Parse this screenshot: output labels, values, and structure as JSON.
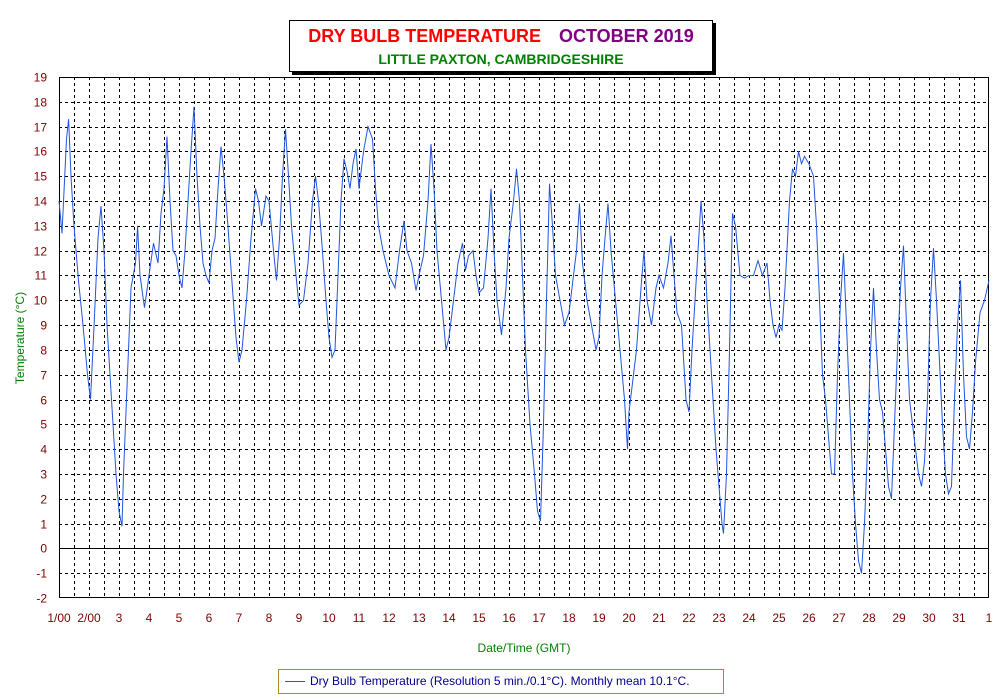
{
  "title": {
    "main": "DRY BULB TEMPERATURE",
    "month": "OCTOBER 2019",
    "subtitle": "LITTLE PAXTON, CAMBRIDGESHIRE"
  },
  "legend": {
    "label": "Dry Bulb Temperature (Resolution 5 min./0.1°C). Monthly mean 10.1°C."
  },
  "colors": {
    "title": "#ff0000",
    "month": "#800080",
    "subtitle": "#008000",
    "axis_ticks": "#800000",
    "axis_titles": "#008000",
    "series": "#2255dd",
    "legend_text": "#00008b"
  },
  "chart_data": {
    "type": "line",
    "xlabel": "Date/Time (GMT)",
    "ylabel": "Temperature (°C)",
    "ylim": [
      -2,
      19
    ],
    "xlim": [
      1,
      32
    ],
    "y_ticks": [
      -2,
      -1,
      0,
      1,
      2,
      3,
      4,
      5,
      6,
      7,
      8,
      9,
      10,
      11,
      12,
      13,
      14,
      15,
      16,
      17,
      18,
      19
    ],
    "x_ticks": [
      {
        "x": 1,
        "label": "1/00"
      },
      {
        "x": 2,
        "label": "2/00"
      },
      {
        "x": 3,
        "label": "3"
      },
      {
        "x": 4,
        "label": "4"
      },
      {
        "x": 5,
        "label": "5"
      },
      {
        "x": 6,
        "label": "6"
      },
      {
        "x": 7,
        "label": "7"
      },
      {
        "x": 8,
        "label": "8"
      },
      {
        "x": 9,
        "label": "9"
      },
      {
        "x": 10,
        "label": "10"
      },
      {
        "x": 11,
        "label": "11"
      },
      {
        "x": 12,
        "label": "12"
      },
      {
        "x": 13,
        "label": "13"
      },
      {
        "x": 14,
        "label": "14"
      },
      {
        "x": 15,
        "label": "15"
      },
      {
        "x": 16,
        "label": "16"
      },
      {
        "x": 17,
        "label": "17"
      },
      {
        "x": 18,
        "label": "18"
      },
      {
        "x": 19,
        "label": "19"
      },
      {
        "x": 20,
        "label": "20"
      },
      {
        "x": 21,
        "label": "21"
      },
      {
        "x": 22,
        "label": "22"
      },
      {
        "x": 23,
        "label": "23"
      },
      {
        "x": 24,
        "label": "24"
      },
      {
        "x": 25,
        "label": "25"
      },
      {
        "x": 26,
        "label": "26"
      },
      {
        "x": 27,
        "label": "27"
      },
      {
        "x": 28,
        "label": "28"
      },
      {
        "x": 29,
        "label": "29"
      },
      {
        "x": 30,
        "label": "30"
      },
      {
        "x": 31,
        "label": "31"
      },
      {
        "x": 32,
        "label": "1"
      }
    ],
    "grid": true,
    "legend_position": "bottom-center",
    "series": [
      {
        "name": "Dry Bulb Temperature (Resolution 5 min./0.1°C). Monthly mean 10.1°C.",
        "points": [
          [
            1.0,
            14.0
          ],
          [
            1.1,
            12.7
          ],
          [
            1.25,
            16.5
          ],
          [
            1.32,
            17.3
          ],
          [
            1.4,
            15.0
          ],
          [
            1.5,
            13.0
          ],
          [
            1.65,
            10.8
          ],
          [
            1.8,
            9.0
          ],
          [
            1.95,
            7.0
          ],
          [
            2.05,
            6.0
          ],
          [
            2.15,
            8.5
          ],
          [
            2.3,
            12.5
          ],
          [
            2.4,
            13.8
          ],
          [
            2.5,
            12.0
          ],
          [
            2.6,
            9.0
          ],
          [
            2.75,
            6.0
          ],
          [
            2.9,
            3.0
          ],
          [
            3.0,
            1.5
          ],
          [
            3.1,
            0.9
          ],
          [
            3.15,
            3.0
          ],
          [
            3.25,
            6.0
          ],
          [
            3.4,
            10.5
          ],
          [
            3.55,
            11.5
          ],
          [
            3.62,
            13.0
          ],
          [
            3.7,
            11.0
          ],
          [
            3.85,
            9.7
          ],
          [
            4.0,
            11.0
          ],
          [
            4.15,
            12.3
          ],
          [
            4.3,
            11.5
          ],
          [
            4.4,
            13.5
          ],
          [
            4.5,
            14.5
          ],
          [
            4.6,
            16.6
          ],
          [
            4.7,
            14.0
          ],
          [
            4.8,
            12.0
          ],
          [
            4.9,
            11.8
          ],
          [
            5.0,
            11.0
          ],
          [
            5.1,
            10.5
          ],
          [
            5.2,
            12.0
          ],
          [
            5.3,
            14.0
          ],
          [
            5.4,
            16.0
          ],
          [
            5.5,
            17.8
          ],
          [
            5.6,
            15.0
          ],
          [
            5.7,
            13.0
          ],
          [
            5.8,
            11.5
          ],
          [
            5.9,
            11.0
          ],
          [
            6.0,
            10.7
          ],
          [
            6.1,
            12.0
          ],
          [
            6.2,
            12.5
          ],
          [
            6.3,
            14.5
          ],
          [
            6.4,
            16.2
          ],
          [
            6.5,
            15.0
          ],
          [
            6.6,
            13.5
          ],
          [
            6.75,
            11.0
          ],
          [
            6.9,
            8.5
          ],
          [
            7.0,
            7.5
          ],
          [
            7.1,
            8.0
          ],
          [
            7.25,
            10.0
          ],
          [
            7.4,
            12.5
          ],
          [
            7.55,
            14.5
          ],
          [
            7.65,
            14.0
          ],
          [
            7.75,
            13.0
          ],
          [
            7.9,
            14.2
          ],
          [
            8.0,
            14.0
          ],
          [
            8.15,
            12.0
          ],
          [
            8.25,
            10.8
          ],
          [
            8.35,
            12.5
          ],
          [
            8.45,
            15.0
          ],
          [
            8.55,
            16.9
          ],
          [
            8.65,
            15.0
          ],
          [
            8.75,
            13.0
          ],
          [
            8.9,
            11.0
          ],
          [
            9.0,
            9.8
          ],
          [
            9.15,
            10.0
          ],
          [
            9.3,
            11.5
          ],
          [
            9.45,
            14.0
          ],
          [
            9.55,
            15.0
          ],
          [
            9.65,
            14.0
          ],
          [
            9.75,
            12.5
          ],
          [
            9.9,
            10.0
          ],
          [
            10.0,
            8.5
          ],
          [
            10.1,
            7.7
          ],
          [
            10.2,
            8.0
          ],
          [
            10.3,
            11.0
          ],
          [
            10.4,
            14.0
          ],
          [
            10.5,
            15.7
          ],
          [
            10.6,
            15.2
          ],
          [
            10.7,
            14.5
          ],
          [
            10.8,
            15.5
          ],
          [
            10.9,
            16.1
          ],
          [
            11.0,
            14.5
          ],
          [
            11.15,
            16.0
          ],
          [
            11.3,
            17.0
          ],
          [
            11.45,
            16.5
          ],
          [
            11.55,
            14.5
          ],
          [
            11.65,
            13.0
          ],
          [
            11.8,
            12.0
          ],
          [
            12.0,
            11.0
          ],
          [
            12.2,
            10.5
          ],
          [
            12.35,
            12.0
          ],
          [
            12.5,
            13.2
          ],
          [
            12.6,
            12.0
          ],
          [
            12.75,
            11.5
          ],
          [
            12.9,
            10.4
          ],
          [
            13.0,
            11.0
          ],
          [
            13.15,
            11.8
          ],
          [
            13.3,
            14.0
          ],
          [
            13.4,
            16.3
          ],
          [
            13.5,
            14.5
          ],
          [
            13.6,
            12.0
          ],
          [
            13.75,
            10.0
          ],
          [
            13.9,
            8.0
          ],
          [
            14.0,
            8.5
          ],
          [
            14.15,
            10.0
          ],
          [
            14.3,
            11.5
          ],
          [
            14.45,
            12.3
          ],
          [
            14.55,
            11.2
          ],
          [
            14.65,
            11.8
          ],
          [
            14.8,
            12.0
          ],
          [
            14.9,
            11.0
          ],
          [
            15.0,
            10.3
          ],
          [
            15.15,
            10.5
          ],
          [
            15.3,
            12.5
          ],
          [
            15.4,
            14.5
          ],
          [
            15.5,
            12.0
          ],
          [
            15.6,
            10.0
          ],
          [
            15.75,
            8.6
          ],
          [
            15.9,
            10.5
          ],
          [
            16.0,
            12.5
          ],
          [
            16.15,
            14.0
          ],
          [
            16.25,
            15.3
          ],
          [
            16.35,
            14.0
          ],
          [
            16.45,
            11.0
          ],
          [
            16.55,
            8.0
          ],
          [
            16.7,
            5.0
          ],
          [
            16.85,
            3.0
          ],
          [
            16.95,
            1.5
          ],
          [
            17.05,
            1.1
          ],
          [
            17.15,
            5.0
          ],
          [
            17.25,
            10.0
          ],
          [
            17.35,
            14.7
          ],
          [
            17.45,
            13.0
          ],
          [
            17.55,
            11.0
          ],
          [
            17.7,
            10.0
          ],
          [
            17.85,
            9.0
          ],
          [
            18.0,
            9.5
          ],
          [
            18.15,
            11.0
          ],
          [
            18.25,
            12.0
          ],
          [
            18.35,
            13.9
          ],
          [
            18.45,
            11.5
          ],
          [
            18.6,
            10.0
          ],
          [
            18.75,
            9.0
          ],
          [
            18.9,
            8.0
          ],
          [
            19.0,
            8.5
          ],
          [
            19.1,
            11.0
          ],
          [
            19.2,
            12.5
          ],
          [
            19.3,
            13.9
          ],
          [
            19.4,
            12.0
          ],
          [
            19.55,
            10.0
          ],
          [
            19.7,
            8.0
          ],
          [
            19.85,
            6.0
          ],
          [
            19.95,
            4.0
          ],
          [
            20.0,
            5.5
          ],
          [
            20.1,
            6.5
          ],
          [
            20.25,
            8.0
          ],
          [
            20.4,
            10.5
          ],
          [
            20.5,
            12.0
          ],
          [
            20.6,
            10.0
          ],
          [
            20.75,
            9.0
          ],
          [
            20.9,
            10.5
          ],
          [
            21.0,
            11.0
          ],
          [
            21.15,
            10.5
          ],
          [
            21.3,
            11.5
          ],
          [
            21.4,
            12.6
          ],
          [
            21.5,
            11.0
          ],
          [
            21.6,
            9.5
          ],
          [
            21.75,
            9.0
          ],
          [
            21.9,
            6.0
          ],
          [
            22.0,
            5.5
          ],
          [
            22.1,
            8.0
          ],
          [
            22.25,
            11.0
          ],
          [
            22.4,
            14.0
          ],
          [
            22.5,
            12.5
          ],
          [
            22.6,
            10.0
          ],
          [
            22.75,
            7.0
          ],
          [
            22.9,
            4.0
          ],
          [
            23.0,
            2.5
          ],
          [
            23.1,
            1.0
          ],
          [
            23.15,
            0.6
          ],
          [
            23.25,
            3.0
          ],
          [
            23.35,
            8.0
          ],
          [
            23.45,
            13.5
          ],
          [
            23.55,
            13.0
          ],
          [
            23.7,
            11.0
          ],
          [
            23.85,
            10.9
          ],
          [
            24.0,
            11.0
          ],
          [
            24.15,
            11.0
          ],
          [
            24.3,
            11.6
          ],
          [
            24.45,
            11.0
          ],
          [
            24.6,
            11.5
          ],
          [
            24.7,
            10.0
          ],
          [
            24.8,
            9.0
          ],
          [
            24.9,
            8.5
          ],
          [
            25.0,
            9.0
          ],
          [
            25.1,
            8.8
          ],
          [
            25.2,
            10.5
          ],
          [
            25.35,
            14.0
          ],
          [
            25.45,
            15.3
          ],
          [
            25.55,
            15.0
          ],
          [
            25.65,
            16.0
          ],
          [
            25.75,
            15.5
          ],
          [
            25.85,
            15.8
          ],
          [
            26.0,
            15.5
          ],
          [
            26.15,
            15.0
          ],
          [
            26.25,
            13.0
          ],
          [
            26.35,
            10.0
          ],
          [
            26.45,
            7.0
          ],
          [
            26.55,
            6.0
          ],
          [
            26.65,
            4.5
          ],
          [
            26.75,
            3.0
          ],
          [
            26.85,
            3.0
          ],
          [
            26.95,
            7.0
          ],
          [
            27.05,
            10.0
          ],
          [
            27.15,
            11.9
          ],
          [
            27.25,
            9.0
          ],
          [
            27.35,
            6.0
          ],
          [
            27.45,
            3.0
          ],
          [
            27.55,
            1.0
          ],
          [
            27.65,
            -0.5
          ],
          [
            27.75,
            -1.0
          ],
          [
            27.85,
            1.0
          ],
          [
            27.95,
            4.0
          ],
          [
            28.05,
            8.0
          ],
          [
            28.15,
            10.5
          ],
          [
            28.25,
            8.0
          ],
          [
            28.35,
            6.0
          ],
          [
            28.45,
            5.5
          ],
          [
            28.55,
            4.0
          ],
          [
            28.65,
            2.5
          ],
          [
            28.75,
            2.0
          ],
          [
            28.85,
            5.0
          ],
          [
            28.95,
            8.0
          ],
          [
            29.05,
            10.5
          ],
          [
            29.15,
            12.2
          ],
          [
            29.25,
            9.0
          ],
          [
            29.35,
            6.0
          ],
          [
            29.45,
            5.0
          ],
          [
            29.55,
            4.0
          ],
          [
            29.65,
            3.0
          ],
          [
            29.75,
            2.5
          ],
          [
            29.85,
            3.5
          ],
          [
            29.95,
            6.0
          ],
          [
            30.05,
            10.0
          ],
          [
            30.15,
            12.1
          ],
          [
            30.25,
            10.0
          ],
          [
            30.35,
            7.5
          ],
          [
            30.45,
            5.0
          ],
          [
            30.55,
            3.0
          ],
          [
            30.65,
            2.2
          ],
          [
            30.75,
            2.5
          ],
          [
            30.85,
            6.0
          ],
          [
            30.95,
            9.0
          ],
          [
            31.05,
            10.8
          ],
          [
            31.15,
            7.0
          ],
          [
            31.25,
            4.5
          ],
          [
            31.35,
            4.0
          ],
          [
            31.45,
            5.5
          ],
          [
            31.55,
            7.5
          ],
          [
            31.7,
            9.5
          ],
          [
            31.85,
            10.0
          ],
          [
            32.0,
            10.8
          ]
        ]
      }
    ]
  }
}
